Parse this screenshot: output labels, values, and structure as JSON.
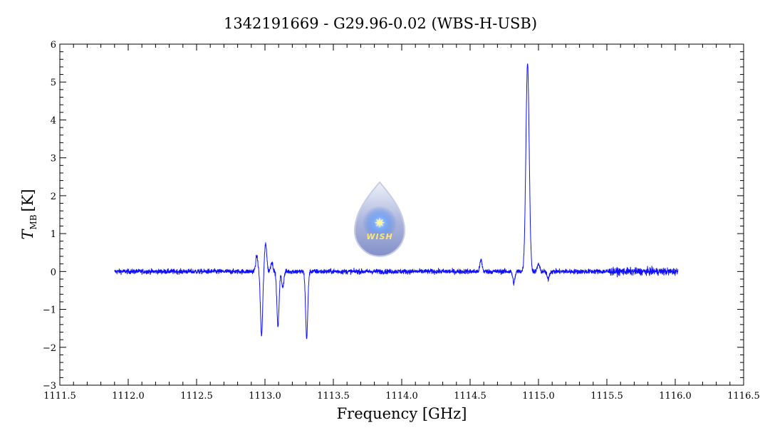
{
  "chart_data": {
    "type": "line",
    "title": "1342191669 - G29.96-0.02 (WBS-H-USB)",
    "xlabel": "Frequency [GHz]",
    "ylabel_main": "T",
    "ylabel_sub": "MB",
    "ylabel_unit": "[K]",
    "xlim": [
      1111.5,
      1116.5
    ],
    "ylim": [
      -3,
      6
    ],
    "x_ticks": [
      1111.5,
      1112.0,
      1112.5,
      1113.0,
      1113.5,
      1114.0,
      1114.5,
      1115.0,
      1115.5,
      1116.0,
      1116.5
    ],
    "x_tick_labels": [
      "1111.5",
      "1112.0",
      "1112.5",
      "1113.0",
      "1113.5",
      "1114.0",
      "1114.5",
      "1115.0",
      "1115.5",
      "1116.0",
      "1116.5"
    ],
    "y_ticks": [
      -3,
      -2,
      -1,
      0,
      1,
      2,
      3,
      4,
      5,
      6
    ],
    "y_tick_labels": [
      "−3",
      "−2",
      "−1",
      "0",
      "1",
      "2",
      "3",
      "4",
      "5",
      "6"
    ],
    "grid": false,
    "line_color": "#1010ff",
    "series": [
      {
        "x_range": [
          1111.9,
          1116.02
        ],
        "noise_rms": 0.08,
        "noise_rms_high": 0.12,
        "features": [
          {
            "center": 1112.94,
            "amplitude": 0.4
          },
          {
            "center": 1112.975,
            "amplitude": -1.7
          },
          {
            "center": 1113.005,
            "amplitude": 0.75
          },
          {
            "center": 1113.05,
            "amplitude": 0.25
          },
          {
            "center": 1113.095,
            "amplitude": -1.45
          },
          {
            "center": 1113.13,
            "amplitude": -0.4
          },
          {
            "center": 1113.305,
            "amplitude": -1.75
          },
          {
            "center": 1114.58,
            "amplitude": 0.3
          },
          {
            "center": 1114.82,
            "amplitude": -0.3
          },
          {
            "center": 1114.92,
            "amplitude": 5.5
          },
          {
            "center": 1115.0,
            "amplitude": 0.2
          },
          {
            "center": 1115.07,
            "amplitude": -0.2
          }
        ]
      }
    ]
  },
  "logo": {
    "text": "WISH",
    "glyph": "✷",
    "colors": {
      "drop_top": "#e8ecf4",
      "drop_bottom": "#8f9bd0",
      "glow": "#3f7ff0",
      "star": "#fff7a0",
      "text": "#ffe96a"
    }
  }
}
